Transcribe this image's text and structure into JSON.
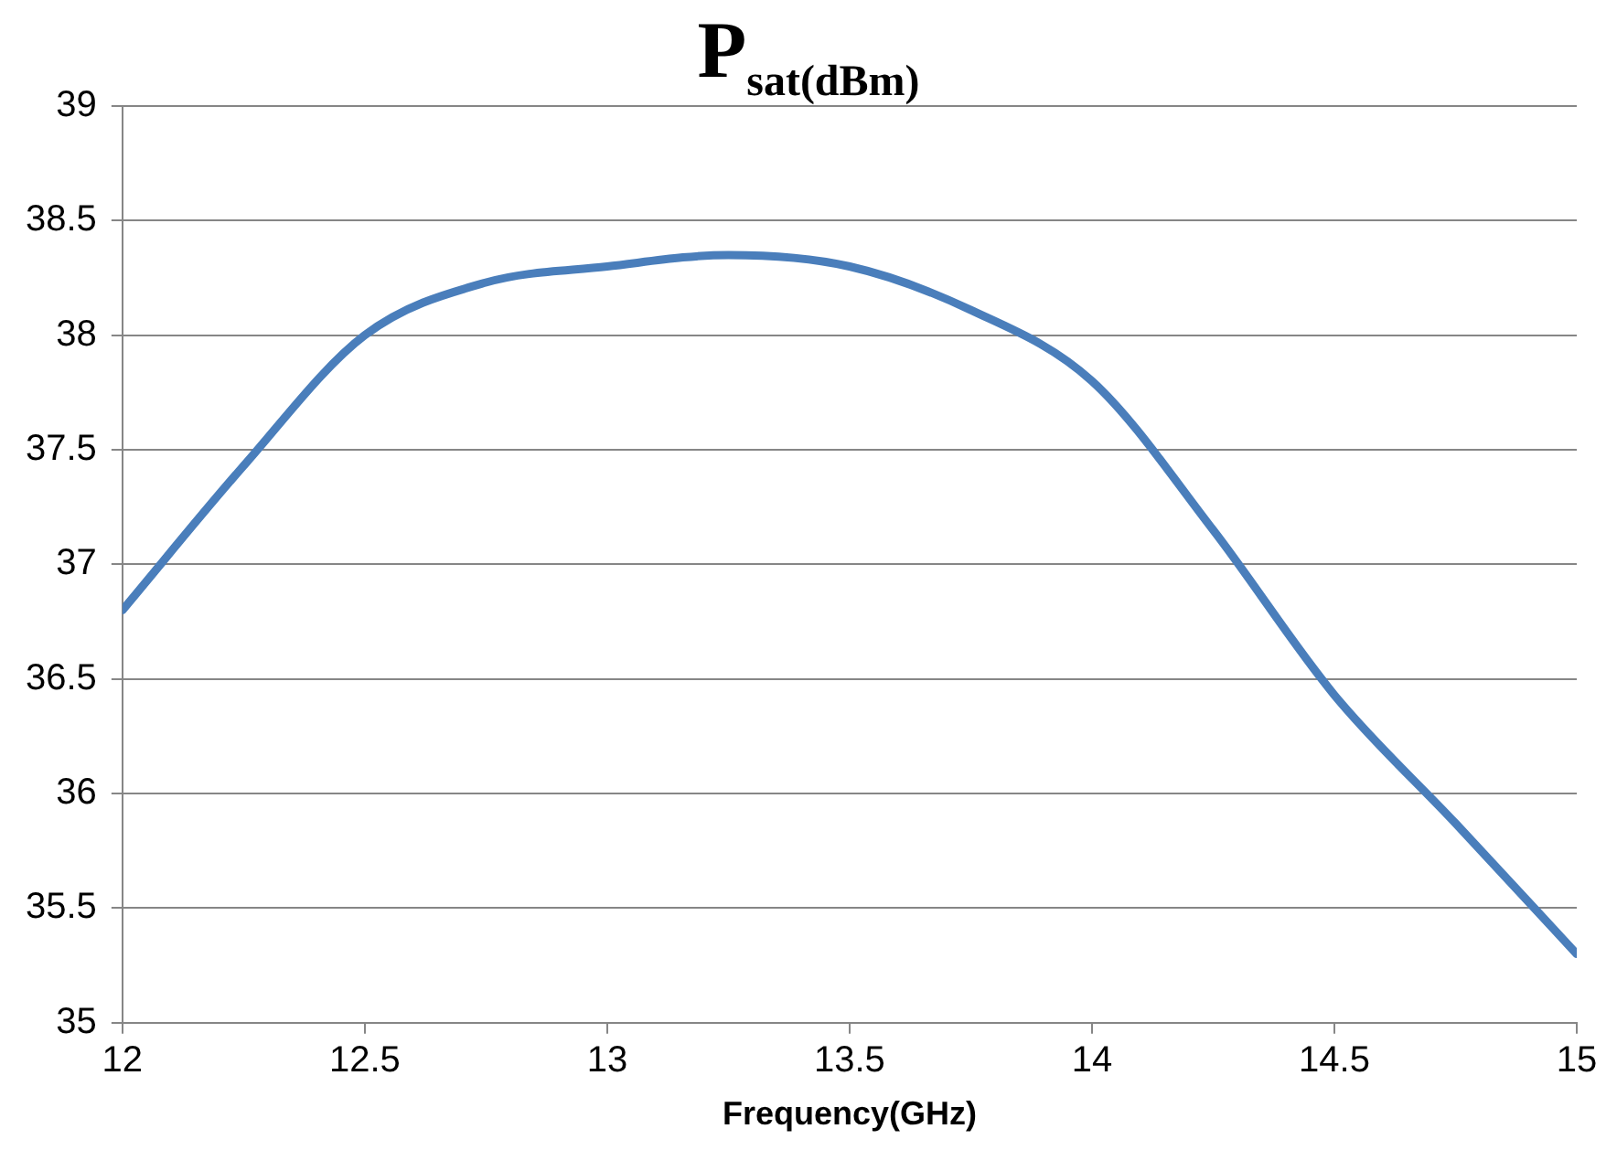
{
  "chart_data": {
    "type": "line",
    "title": "P$_{sat(dBm)}$",
    "xlabel": "Frequency(GHz)",
    "x": [
      12,
      12.25,
      12.5,
      12.75,
      13,
      13.25,
      13.5,
      13.75,
      14,
      14.25,
      14.5,
      14.75,
      15
    ],
    "series": [
      {
        "color": "#4a7ebb",
        "values": [
          36.8,
          37.43,
          38.0,
          38.23,
          38.3,
          38.35,
          38.3,
          38.11,
          37.8,
          37.15,
          36.43,
          35.87,
          35.3
        ]
      }
    ],
    "xlim": [
      12,
      15
    ],
    "xticks": [
      12,
      12.5,
      13,
      13.5,
      14,
      14.5,
      15
    ],
    "ylim": [
      35,
      39
    ],
    "yticks": [
      35,
      35.5,
      36,
      36.5,
      37,
      37.5,
      38,
      38.5,
      39
    ],
    "grid": "y",
    "legend": false,
    "marker": "none",
    "line_style": "solid"
  }
}
